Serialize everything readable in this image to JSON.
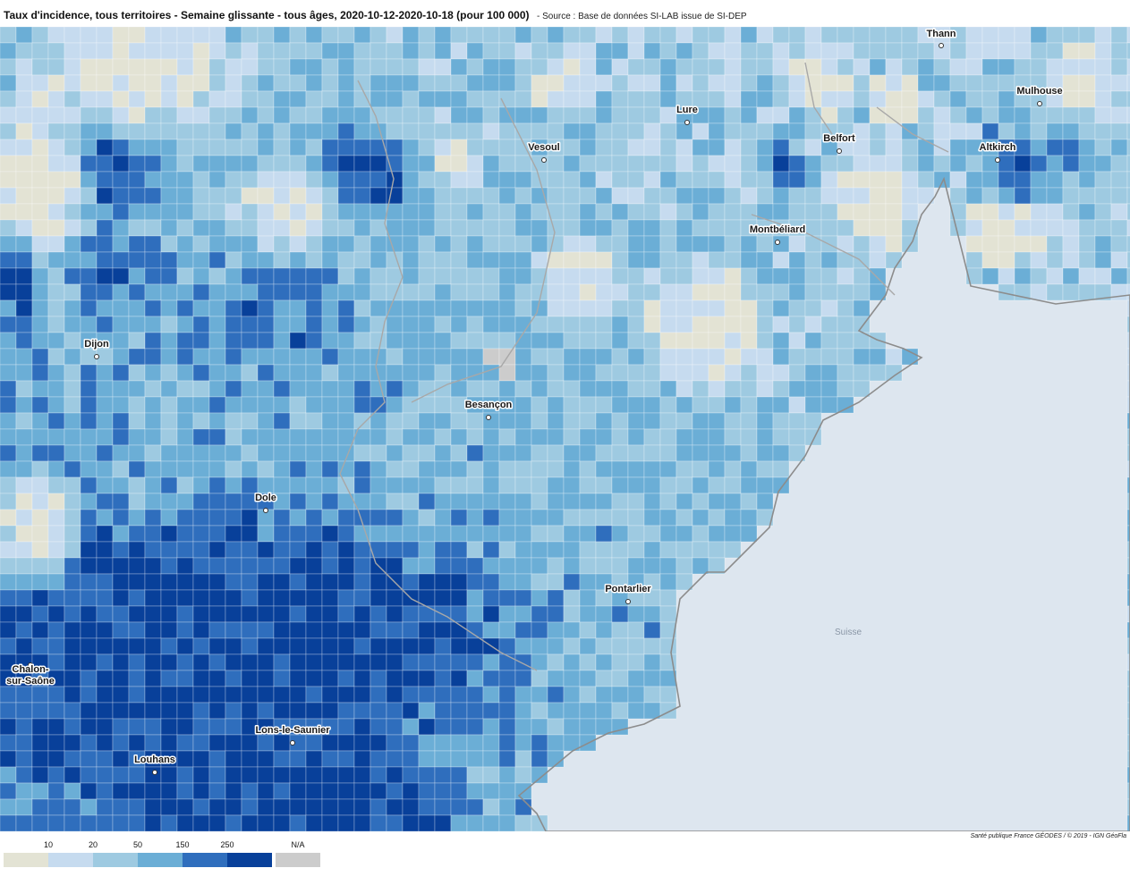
{
  "title": {
    "main": "Taux d'incidence, tous territoires - Semaine glissante - tous âges, 2020-10-12-2020-10-18 (pour 100 000)",
    "source": "- Source : Base de données SI-LAB issue de SI-DEP"
  },
  "credit": "Santé publique France GÉODES / © 2019 - IGN GéoFla",
  "legend": {
    "ticks": [
      "10",
      "20",
      "50",
      "150",
      "250"
    ],
    "na_label": "N/A",
    "colors": [
      "#e3e3d4",
      "#c6dbef",
      "#9ecae1",
      "#6baed6",
      "#2f6ebd",
      "#08409a"
    ],
    "na_color": "#cccccc"
  },
  "map": {
    "sea_color": "#dde6ef",
    "cities": [
      "Thann",
      "Mulhouse",
      "Lure",
      "Vesoul",
      "Belfort",
      "Altkirch",
      "Montbéliard",
      "Dijon",
      "Besançon",
      "Dole",
      "Pontarlier",
      "Chalon-sur-Saône",
      "Lons-le-Saunier",
      "Louhans"
    ],
    "chalon_lines": [
      "Chalon-",
      "sur-Saône"
    ],
    "country": "Suisse"
  }
}
